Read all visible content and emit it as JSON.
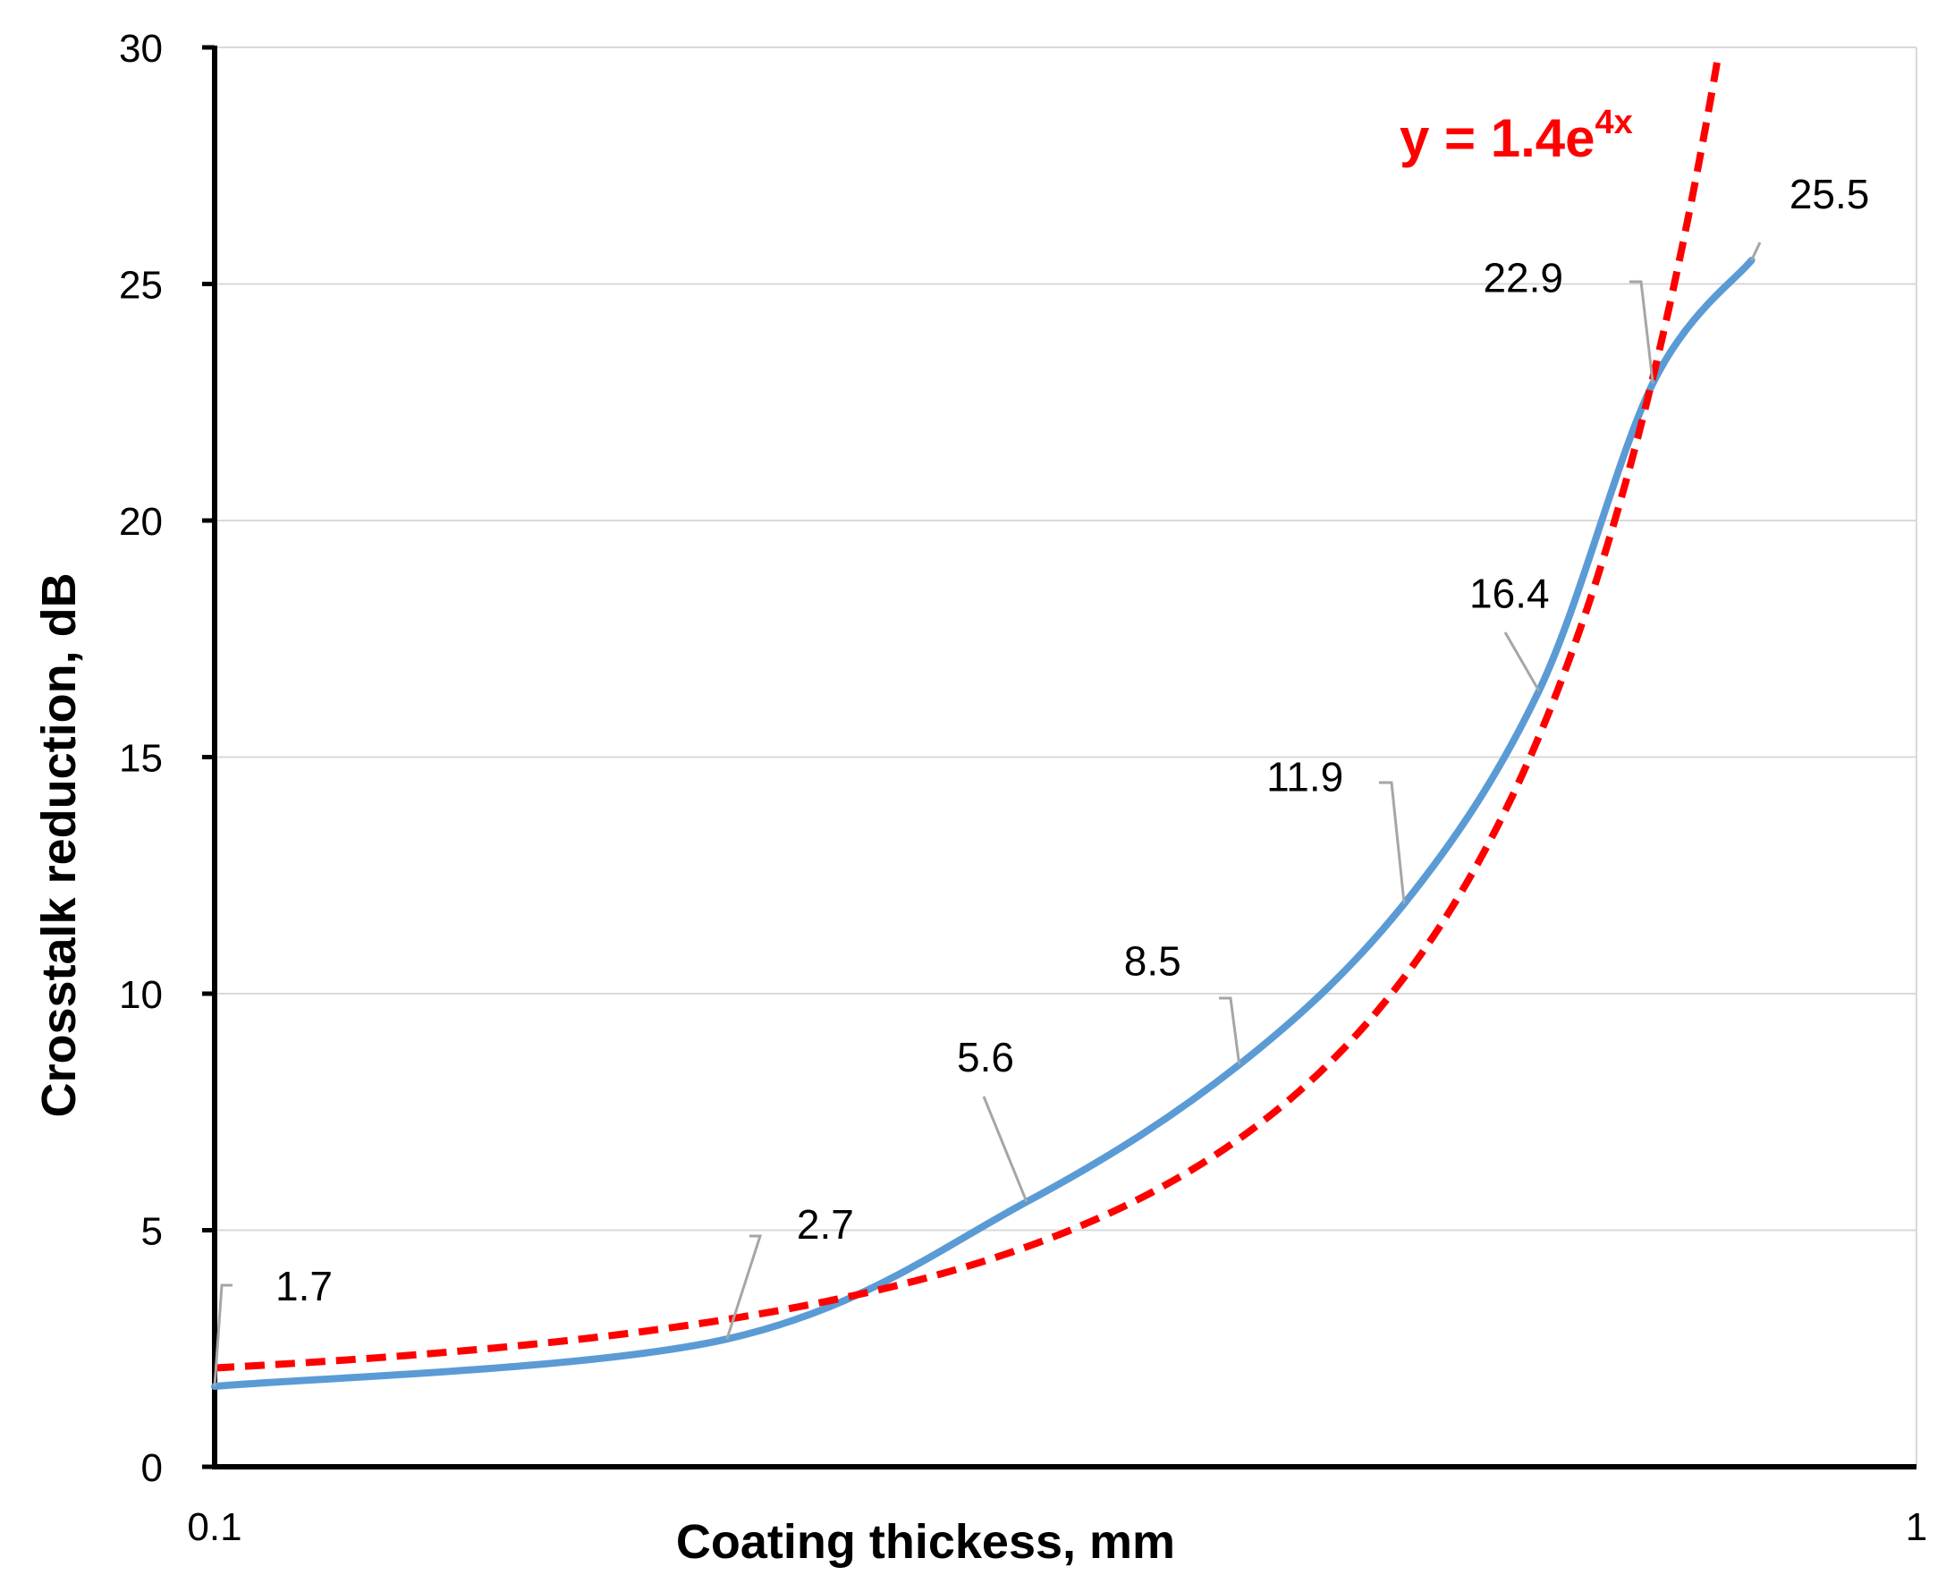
{
  "chart_data": {
    "type": "line",
    "title": "",
    "xlabel": "Coating thickess, mm",
    "ylabel": "Crosstalk reduction, dB",
    "x_scale": "log",
    "xlim": [
      0.1,
      1
    ],
    "ylim": [
      0,
      30
    ],
    "x_tick_labels": [
      "0.1",
      "1"
    ],
    "y_tick_labels": [
      "0",
      "5",
      "10",
      "15",
      "20",
      "25",
      "30"
    ],
    "y_ticks": [
      0,
      5,
      10,
      15,
      20,
      25,
      30
    ],
    "grid": "horizontal",
    "series": [
      {
        "color": "#5b9bd5",
        "style": "solid",
        "x": [
          0.1,
          0.2,
          0.3,
          0.4,
          0.5,
          0.6,
          0.7,
          0.8
        ],
        "values": [
          1.7,
          2.7,
          5.6,
          8.5,
          11.9,
          16.4,
          22.9,
          25.5
        ],
        "data_labels": [
          "1.7",
          "2.7",
          "5.6",
          "8.5",
          "11.9",
          "16.4",
          "22.9",
          "25.5"
        ]
      },
      {
        "color": "#ff0000",
        "style": "dashed",
        "fit": "exponential",
        "coef_a": 1.4,
        "coef_b": 4,
        "x_start": 0.1,
        "x_end": 0.765
      }
    ],
    "annotations": [
      {
        "text": "y = 1.4e",
        "superscript": "4x",
        "color": "#ff0000"
      }
    ]
  }
}
